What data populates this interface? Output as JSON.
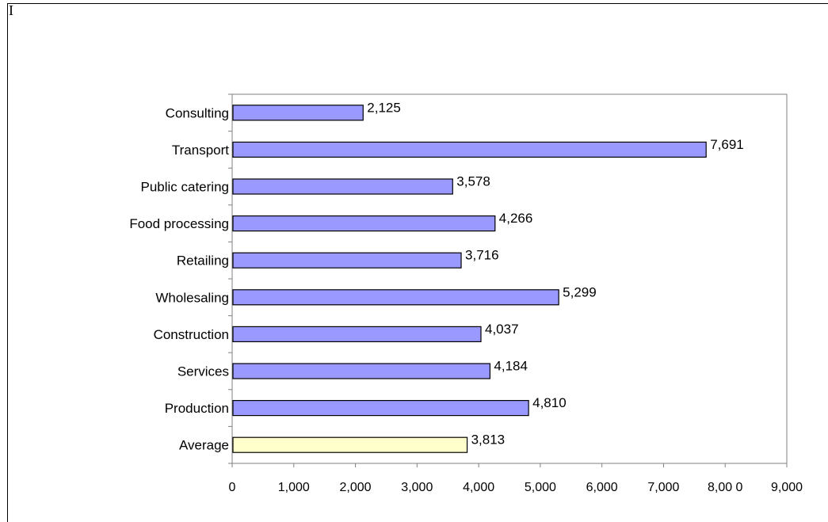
{
  "corner_mark": "I",
  "colors": {
    "bar": "#9999ff",
    "highlight_bar": "#ffffcc",
    "bar_stroke": "#000000",
    "axis": "#808080"
  },
  "chart_data": {
    "type": "bar",
    "orientation": "horizontal",
    "categories": [
      "Consulting",
      "Transport",
      "Public catering",
      "Food processing",
      "Retailing",
      "Wholesaling",
      "Construction",
      "Services",
      "Production",
      "Average"
    ],
    "values": [
      2125,
      7691,
      3578,
      4266,
      3716,
      5299,
      4037,
      4184,
      4810,
      3813
    ],
    "value_labels": [
      "2,125",
      "7,691",
      "3,578",
      "4,266",
      "3,716",
      "5,299",
      "4,037",
      "4,184",
      "4,810",
      "3,813"
    ],
    "highlight_category": "Average",
    "xlim": [
      0,
      9000
    ],
    "x_ticks": [
      0,
      1000,
      2000,
      3000,
      4000,
      5000,
      6000,
      7000,
      8000,
      9000
    ],
    "x_tick_labels": [
      "0",
      "1,000",
      "2,000",
      "3,000",
      "4,000",
      "5,000",
      "6,000",
      "7,000",
      "8,00 0",
      "9,000"
    ],
    "title": "",
    "xlabel": "",
    "ylabel": "",
    "grid": false,
    "legend": false
  }
}
